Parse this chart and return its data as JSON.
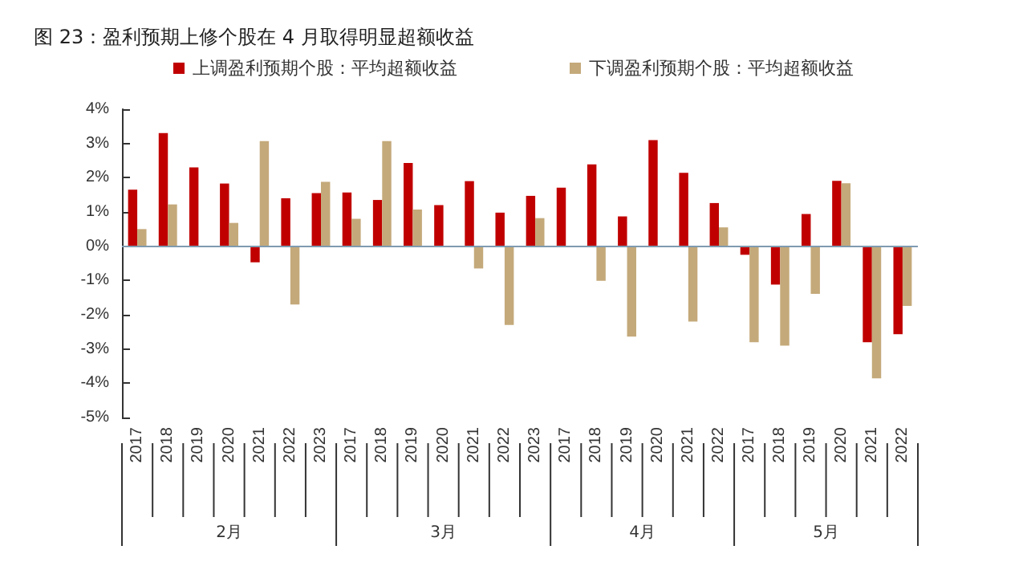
{
  "chart_data": {
    "type": "bar",
    "title": "图 23：盈利预期上修个股在 4 月取得明显超额收益",
    "categories": [
      "2017",
      "2018",
      "2019",
      "2020",
      "2021",
      "2022",
      "2023",
      "2017",
      "2018",
      "2019",
      "2020",
      "2021",
      "2022",
      "2023",
      "2017",
      "2018",
      "2019",
      "2020",
      "2021",
      "2022",
      "2017",
      "2018",
      "2019",
      "2020",
      "2021",
      "2022"
    ],
    "annotations": [
      "2月",
      "3月",
      "4月",
      "5月"
    ],
    "series": [
      {
        "name": "上调盈利预期个股：平均超额收益",
        "color": "#c00000",
        "values": [
          1.65,
          3.3,
          2.3,
          1.83,
          -0.47,
          1.4,
          1.55,
          1.57,
          1.35,
          2.43,
          1.2,
          1.9,
          0.98,
          1.47,
          1.71,
          2.39,
          0.87,
          3.1,
          2.14,
          1.26,
          -0.25,
          -1.12,
          0.94,
          1.91,
          -2.8,
          -2.57
        ]
      },
      {
        "name": "下调盈利预期个股：平均超额收益",
        "color": "#c4a97a",
        "values": [
          0.5,
          1.22,
          0,
          0.68,
          3.07,
          -1.7,
          1.88,
          0.8,
          3.07,
          1.07,
          0,
          -0.65,
          -2.3,
          0.82,
          0,
          -1.01,
          -2.64,
          0,
          -2.2,
          0.55,
          -2.8,
          -2.9,
          -1.39,
          1.84,
          -3.86,
          -1.74
        ]
      }
    ],
    "ylim": [
      -5,
      4
    ],
    "yticks": [
      {
        "value": -5,
        "label": "-5%"
      },
      {
        "value": -4,
        "label": "-4%"
      },
      {
        "value": -3,
        "label": "-3%"
      },
      {
        "value": -2,
        "label": "-2%"
      },
      {
        "value": -1,
        "label": "-1%"
      },
      {
        "value": 0,
        "label": "0%"
      },
      {
        "value": 1,
        "label": "1%"
      },
      {
        "value": 2,
        "label": "2%"
      },
      {
        "value": 3,
        "label": "3%"
      },
      {
        "value": 4,
        "label": "4%"
      }
    ],
    "ref_lines": [
      {
        "axis": "y",
        "value": 0,
        "color": "#7f9bb0"
      }
    ],
    "grid": false,
    "legend": "top"
  }
}
